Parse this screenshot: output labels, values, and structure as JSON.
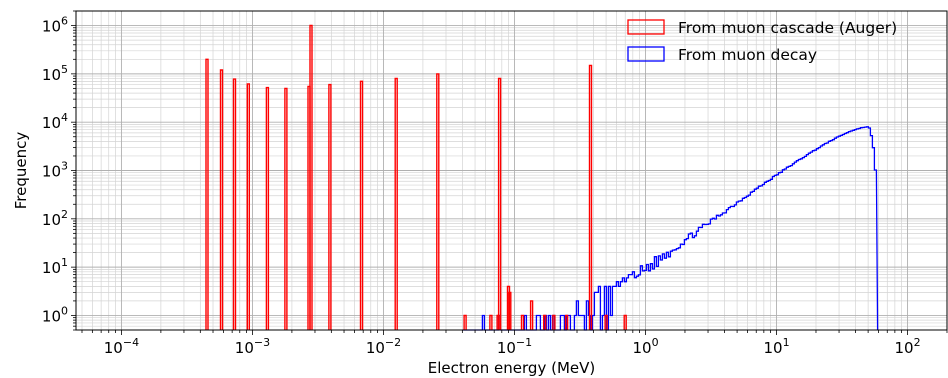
{
  "chart_data": {
    "type": "histogram",
    "xscale": "log",
    "yscale": "log",
    "xlabel": "Electron energy (MeV)",
    "ylabel": "Frequency",
    "xlim": [
      4.5e-05,
      200
    ],
    "ylim": [
      0.5,
      2000000
    ],
    "x_ticks": [
      {
        "value": 0.0001,
        "base": "10",
        "exp": "−4"
      },
      {
        "value": 0.001,
        "base": "10",
        "exp": "−3"
      },
      {
        "value": 0.01,
        "base": "10",
        "exp": "−2"
      },
      {
        "value": 0.1,
        "base": "10",
        "exp": "−1"
      },
      {
        "value": 1,
        "base": "10",
        "exp": "0"
      },
      {
        "value": 10,
        "base": "10",
        "exp": "1"
      },
      {
        "value": 100,
        "base": "10",
        "exp": "2"
      }
    ],
    "y_ticks": [
      {
        "value": 1,
        "base": "10",
        "exp": "0"
      },
      {
        "value": 10,
        "base": "10",
        "exp": "1"
      },
      {
        "value": 100,
        "base": "10",
        "exp": "2"
      },
      {
        "value": 1000,
        "base": "10",
        "exp": "3"
      },
      {
        "value": 10000,
        "base": "10",
        "exp": "4"
      },
      {
        "value": 100000,
        "base": "10",
        "exp": "5"
      },
      {
        "value": 1000000,
        "base": "10",
        "exp": "6"
      }
    ],
    "grid": "major and minor",
    "legend_position": "top-right",
    "series": [
      {
        "name": "From muon cascade (Auger)",
        "color": "#ff0000",
        "style": "step",
        "points": [
          [
            0.00045,
            200000
          ],
          [
            0.00058,
            120000
          ],
          [
            0.00073,
            78000
          ],
          [
            0.00093,
            62000
          ],
          [
            0.0013,
            52000
          ],
          [
            0.0018,
            50000
          ],
          [
            0.0027,
            55000
          ],
          [
            0.0028,
            1000000
          ],
          [
            0.0039,
            60000
          ],
          [
            0.0068,
            70000
          ],
          [
            0.0125,
            80000
          ],
          [
            0.026,
            100000
          ],
          [
            0.042,
            1
          ],
          [
            0.066,
            1
          ],
          [
            0.075,
            1
          ],
          [
            0.077,
            80000
          ],
          [
            0.09,
            4
          ],
          [
            0.092,
            3
          ],
          [
            0.115,
            1
          ],
          [
            0.135,
            2
          ],
          [
            0.17,
            1
          ],
          [
            0.2,
            1
          ],
          [
            0.25,
            1
          ],
          [
            0.38,
            150000
          ],
          [
            0.5,
            1
          ],
          [
            0.7,
            1
          ]
        ]
      },
      {
        "name": "From muon decay",
        "color": "#0000ff",
        "style": "step",
        "peak_energy": 50,
        "peak_frequency": 8000,
        "cutoff_energy": 57,
        "x_min": 0.04
      }
    ]
  }
}
